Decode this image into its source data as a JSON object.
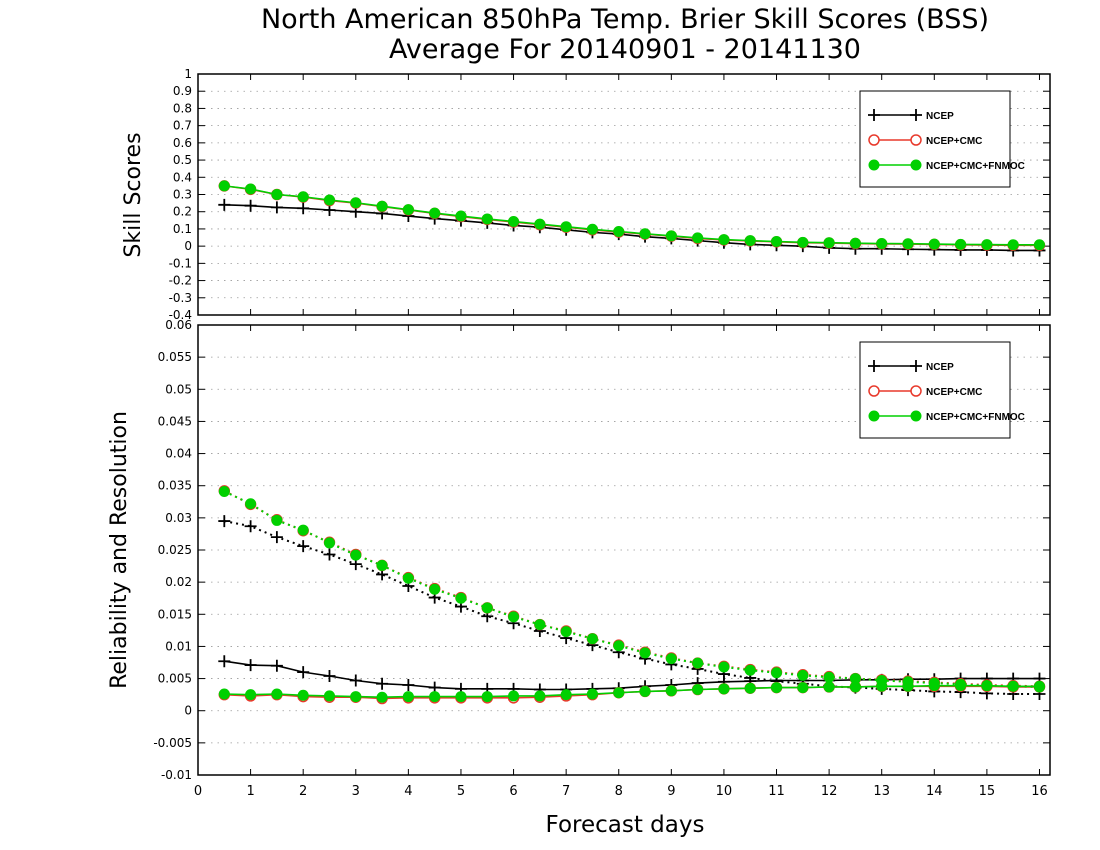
{
  "title_line1": "North American 850hPa Temp. Brier Skill Scores (BSS)",
  "title_line2": "Average For 20140901 - 20141130",
  "colors": {
    "NCEP": "#000000",
    "NCEP+CMC": "#e8392b",
    "NCEP+CMC+FNMOC": "#00d000"
  },
  "chart_data": [
    {
      "type": "line",
      "ylabel": "Skill Scores",
      "xlabel": "",
      "xlim": [
        0,
        16.2
      ],
      "ylim": [
        -0.4,
        1
      ],
      "yticks": [
        "-0.4",
        "-0.3",
        "-0.2",
        "-0.1",
        "0",
        "0.1",
        "0.2",
        "0.3",
        "0.4",
        "0.5",
        "0.6",
        "0.7",
        "0.8",
        "0.9",
        "1"
      ],
      "grid": true,
      "legend_position": "top-right",
      "x": [
        0.5,
        1,
        1.5,
        2,
        2.5,
        3,
        3.5,
        4,
        4.5,
        5,
        5.5,
        6,
        6.5,
        7,
        7.5,
        8,
        8.5,
        9,
        9.5,
        10,
        10.5,
        11,
        11.5,
        12,
        12.5,
        13,
        13.5,
        14,
        14.5,
        15,
        15.5,
        16
      ],
      "series": [
        {
          "name": "NCEP",
          "marker": "plus",
          "line": "solid",
          "values": [
            0.24,
            0.235,
            0.225,
            0.22,
            0.21,
            0.2,
            0.19,
            0.175,
            0.16,
            0.148,
            0.135,
            0.12,
            0.11,
            0.095,
            0.08,
            0.07,
            0.055,
            0.045,
            0.032,
            0.02,
            0.01,
            0.005,
            0.0,
            -0.01,
            -0.015,
            -0.015,
            -0.018,
            -0.02,
            -0.022,
            -0.022,
            -0.025,
            -0.025
          ]
        },
        {
          "name": "NCEP+CMC",
          "marker": "circle-open",
          "line": "solid",
          "values": [
            0.35,
            0.33,
            0.3,
            0.285,
            0.265,
            0.25,
            0.23,
            0.21,
            0.19,
            0.172,
            0.155,
            0.14,
            0.125,
            0.11,
            0.095,
            0.082,
            0.07,
            0.058,
            0.045,
            0.036,
            0.03,
            0.025,
            0.02,
            0.018,
            0.015,
            0.013,
            0.012,
            0.01,
            0.008,
            0.006,
            0.005,
            0.005
          ]
        },
        {
          "name": "NCEP+CMC+FNMOC",
          "marker": "circle-filled",
          "line": "solid",
          "values": [
            0.35,
            0.332,
            0.3,
            0.287,
            0.268,
            0.252,
            0.232,
            0.212,
            0.192,
            0.175,
            0.158,
            0.143,
            0.128,
            0.113,
            0.098,
            0.085,
            0.072,
            0.06,
            0.048,
            0.038,
            0.032,
            0.027,
            0.022,
            0.02,
            0.017,
            0.015,
            0.014,
            0.012,
            0.01,
            0.009,
            0.008,
            0.008
          ]
        }
      ]
    },
    {
      "type": "line",
      "ylabel": "Reliability and Resolution",
      "xlabel": "Forecast days",
      "xlim": [
        0,
        16.2
      ],
      "ylim": [
        -0.01,
        0.06
      ],
      "yticks": [
        "-0.01",
        "-0.005",
        "0",
        "0.005",
        "0.01",
        "0.015",
        "0.02",
        "0.025",
        "0.03",
        "0.035",
        "0.04",
        "0.045",
        "0.05",
        "0.055",
        "0.06"
      ],
      "xticks": [
        "0",
        "1",
        "2",
        "3",
        "4",
        "5",
        "6",
        "7",
        "8",
        "9",
        "10",
        "11",
        "12",
        "13",
        "14",
        "15",
        "16"
      ],
      "grid": true,
      "legend_position": "top-right",
      "x": [
        0.5,
        1,
        1.5,
        2,
        2.5,
        3,
        3.5,
        4,
        4.5,
        5,
        5.5,
        6,
        6.5,
        7,
        7.5,
        8,
        8.5,
        9,
        9.5,
        10,
        10.5,
        11,
        11.5,
        12,
        12.5,
        13,
        13.5,
        14,
        14.5,
        15,
        15.5,
        16
      ],
      "series": [
        {
          "name": "NCEP",
          "marker": "plus",
          "line": "solid",
          "values": [
            0.0077,
            0.0071,
            0.007,
            0.006,
            0.0054,
            0.0047,
            0.0042,
            0.004,
            0.0036,
            0.0034,
            0.0034,
            0.0034,
            0.0033,
            0.0033,
            0.0034,
            0.0035,
            0.0038,
            0.004,
            0.0043,
            0.0045,
            0.0046,
            0.0047,
            0.0047,
            0.0047,
            0.0048,
            0.0048,
            0.0049,
            0.0049,
            0.005,
            0.005,
            0.005,
            0.005
          ]
        },
        {
          "name": "NCEP",
          "marker": "plus",
          "line": "dotted",
          "values": [
            0.0295,
            0.0287,
            0.027,
            0.0256,
            0.0243,
            0.0228,
            0.0212,
            0.0194,
            0.0176,
            0.0162,
            0.0147,
            0.0136,
            0.0124,
            0.0113,
            0.0102,
            0.0091,
            0.0081,
            0.0072,
            0.0065,
            0.0057,
            0.0051,
            0.0046,
            0.0042,
            0.0038,
            0.0036,
            0.0034,
            0.0032,
            0.003,
            0.0029,
            0.0027,
            0.0026,
            0.0026
          ]
        },
        {
          "name": "NCEP+CMC",
          "marker": "circle-open",
          "line": "solid",
          "values": [
            0.0025,
            0.0023,
            0.0025,
            0.0022,
            0.0021,
            0.0021,
            0.0019,
            0.002,
            0.002,
            0.002,
            0.002,
            0.002,
            0.0021,
            0.0023,
            0.0025,
            0.0028,
            0.003,
            0.0031,
            0.0033,
            0.0034,
            0.0035,
            0.0036,
            0.0036,
            0.0037,
            0.0037,
            0.0038,
            0.0038,
            0.0038,
            0.0038,
            0.0038,
            0.0037,
            0.0037
          ]
        },
        {
          "name": "NCEP+CMC",
          "marker": "circle-open",
          "line": "dotted",
          "values": [
            0.0342,
            0.0321,
            0.0297,
            0.028,
            0.0262,
            0.0243,
            0.0226,
            0.0207,
            0.019,
            0.0176,
            0.016,
            0.0147,
            0.0134,
            0.0124,
            0.0112,
            0.0102,
            0.0091,
            0.0082,
            0.0074,
            0.0069,
            0.0064,
            0.006,
            0.0056,
            0.0053,
            0.005,
            0.0048,
            0.0046,
            0.0044,
            0.0042,
            0.004,
            0.0039,
            0.0038
          ]
        },
        {
          "name": "NCEP+CMC+FNMOC",
          "marker": "circle-filled",
          "line": "solid",
          "values": [
            0.0026,
            0.0025,
            0.0026,
            0.0024,
            0.0023,
            0.0022,
            0.0021,
            0.0022,
            0.0022,
            0.0022,
            0.0022,
            0.0023,
            0.0023,
            0.0025,
            0.0026,
            0.0028,
            0.003,
            0.0031,
            0.0033,
            0.0034,
            0.0035,
            0.0036,
            0.0036,
            0.0037,
            0.0037,
            0.0038,
            0.0038,
            0.0039,
            0.0039,
            0.0039,
            0.0038,
            0.0038
          ]
        },
        {
          "name": "NCEP+CMC+FNMOC",
          "marker": "circle-filled",
          "line": "dotted",
          "values": [
            0.0341,
            0.0322,
            0.0296,
            0.0281,
            0.0261,
            0.0242,
            0.0226,
            0.0206,
            0.0189,
            0.0175,
            0.016,
            0.0146,
            0.0134,
            0.0123,
            0.0112,
            0.0101,
            0.009,
            0.0081,
            0.0074,
            0.0068,
            0.0063,
            0.0059,
            0.0055,
            0.0052,
            0.005,
            0.0047,
            0.0045,
            0.0043,
            0.0041,
            0.0039,
            0.0038,
            0.0037
          ]
        }
      ]
    }
  ]
}
